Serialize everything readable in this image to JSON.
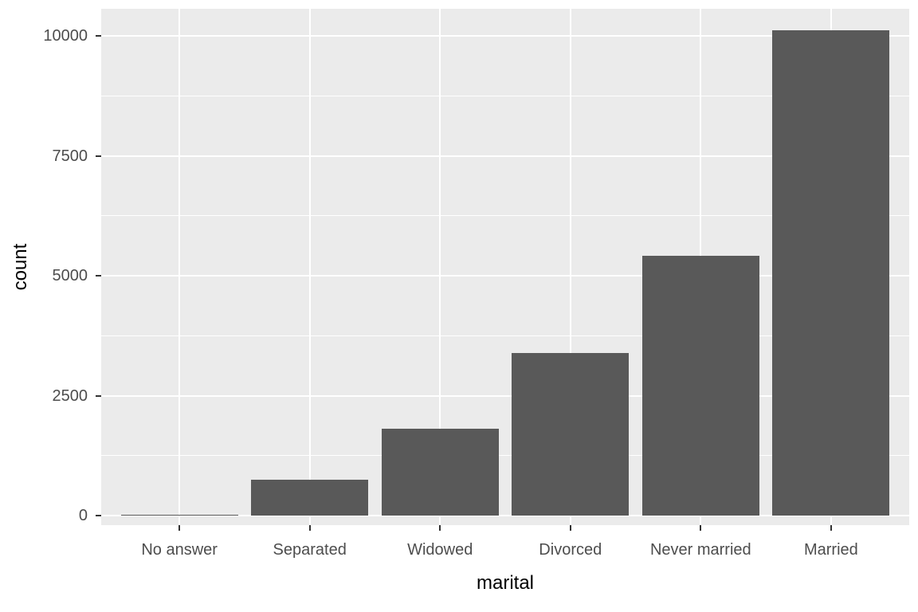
{
  "chart_data": {
    "type": "bar",
    "xlabel": "marital",
    "ylabel": "count",
    "categories": [
      "No answer",
      "Separated",
      "Widowed",
      "Divorced",
      "Never married",
      "Married"
    ],
    "values": [
      17,
      743,
      1807,
      3383,
      5416,
      10117
    ],
    "y_ticks": [
      0,
      2500,
      5000,
      7500,
      10000
    ],
    "y_tick_labels": [
      "0",
      "2500",
      "5000",
      "7500",
      "10000"
    ],
    "y_minor_ticks": [
      1250,
      3750,
      6250,
      8750
    ],
    "ylim": [
      -200,
      10570
    ],
    "grid": "on",
    "legend": "none",
    "style": {
      "panel_bg": "#EBEBEB",
      "grid_color": "#FFFFFF",
      "bar_color": "#595959",
      "tick_label_color": "#4D4D4D",
      "axis_title_color": "#000000",
      "tick_mark_color": "#333333",
      "figure_bg": "#FFFFFF"
    }
  }
}
